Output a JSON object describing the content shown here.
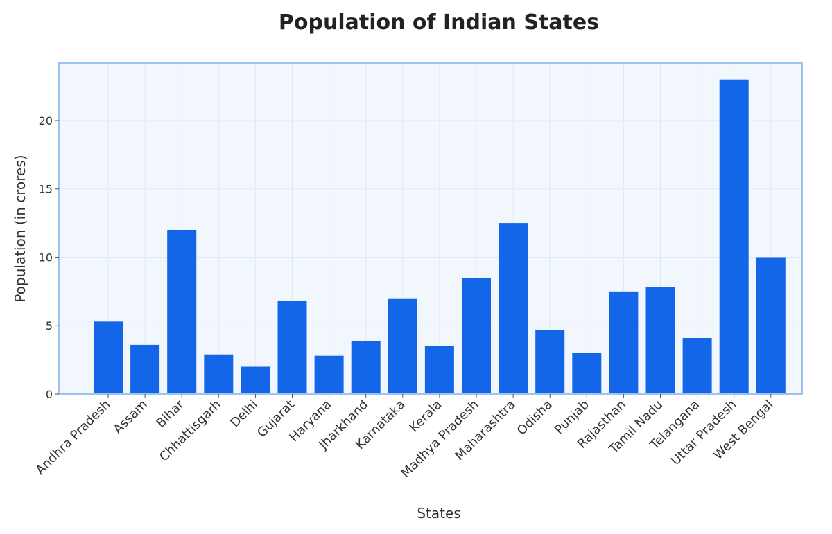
{
  "chart_data": {
    "type": "bar",
    "title": "Population of Indian States",
    "xlabel": "States",
    "ylabel": "Population (in crores)",
    "categories": [
      "Andhra Pradesh",
      "Assam",
      "Bihar",
      "Chhattisgarh",
      "Delhi",
      "Gujarat",
      "Haryana",
      "Jharkhand",
      "Karnataka",
      "Kerala",
      "Madhya Pradesh",
      "Maharashtra",
      "Odisha",
      "Punjab",
      "Rajasthan",
      "Tamil Nadu",
      "Telangana",
      "Uttar Pradesh",
      "West Bengal"
    ],
    "values": [
      5.3,
      3.6,
      12.0,
      2.9,
      2.0,
      6.8,
      2.8,
      3.9,
      7.0,
      3.5,
      8.5,
      12.5,
      4.7,
      3.0,
      7.5,
      7.8,
      4.1,
      23.0,
      10.0
    ],
    "ylim": [
      0,
      24.2
    ],
    "yticks": [
      0,
      5,
      10,
      15,
      20
    ],
    "grid": true,
    "colors": {
      "bar": "#1366E8",
      "plot_background": "#F2F7FE",
      "plot_border": "#9EC3F0",
      "grid": "#DFE8F8"
    }
  }
}
